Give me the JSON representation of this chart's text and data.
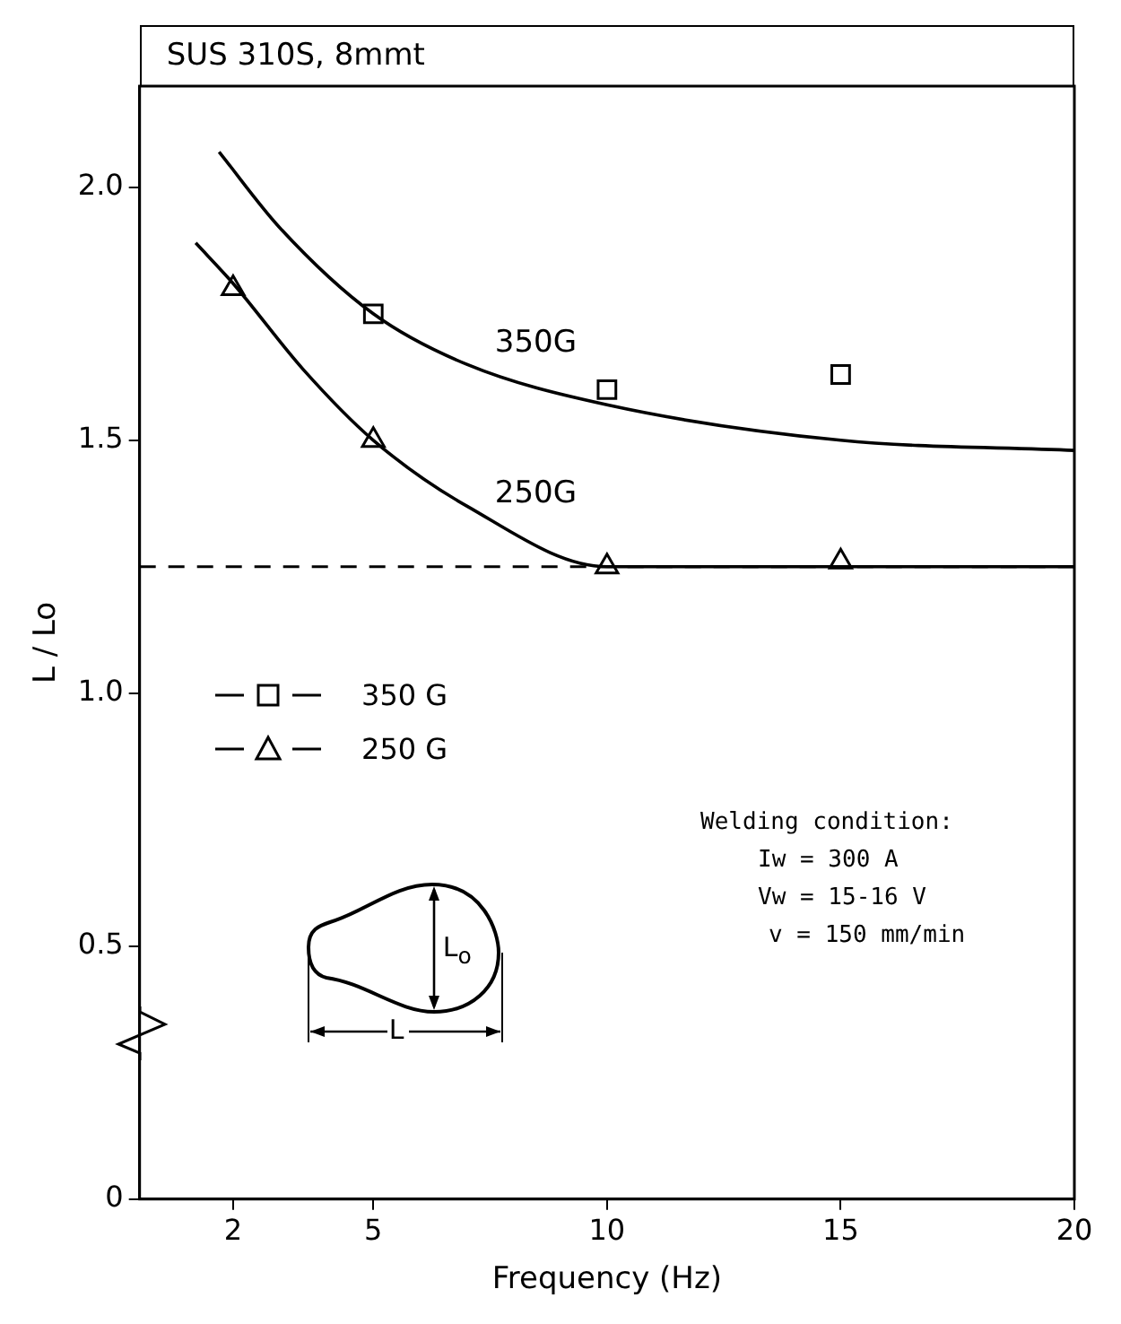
{
  "chart_data": {
    "type": "scatter",
    "title": "SUS 310S, 8mmt",
    "xlabel": "Frequency (Hz)",
    "ylabel": "L / Lo",
    "xlim": [
      0,
      20
    ],
    "xticks": [
      2,
      5,
      10,
      15,
      20
    ],
    "ylim": [
      0,
      2.2
    ],
    "yticks": [
      0,
      {
        "value": 0.5,
        "label": "0.5"
      },
      {
        "value": 1,
        "label": "1.0"
      },
      {
        "value": 1.5,
        "label": "1.5"
      },
      {
        "value": 2,
        "label": "2.0"
      }
    ],
    "series": [
      {
        "name": "350 G",
        "marker": "square",
        "color": "#000000",
        "x": [
          5,
          10,
          15
        ],
        "values": [
          1.75,
          1.6,
          1.63
        ]
      },
      {
        "name": "250 G",
        "marker": "triangle",
        "color": "#000000",
        "x": [
          2,
          5,
          10,
          15
        ],
        "values": [
          1.8,
          1.5,
          1.25,
          1.26
        ]
      },
      {
        "type": "line",
        "color": "#000000",
        "x": [
          1.7,
          3,
          5,
          7,
          10,
          15,
          20
        ],
        "values": [
          2.07,
          1.92,
          1.75,
          1.65,
          1.57,
          1.5,
          1.48
        ]
      },
      {
        "type": "line",
        "color": "#000000",
        "x": [
          1.2,
          2,
          3.5,
          5,
          7,
          10,
          15,
          20
        ],
        "values": [
          1.89,
          1.81,
          1.64,
          1.5,
          1.37,
          1.25,
          1.25,
          1.25
        ]
      }
    ],
    "ref_lines": [
      {
        "axis": "y",
        "value": 1.25,
        "color": "#000000",
        "line_style": "dashed"
      }
    ],
    "annotations": [
      "350G",
      "250G",
      "Welding condition:",
      "Iw = 300 A",
      "Vw = 15-16 V",
      "v = 150 mm/min",
      "L$_{o}$",
      "L"
    ],
    "legend": "left",
    "grid": false
  }
}
